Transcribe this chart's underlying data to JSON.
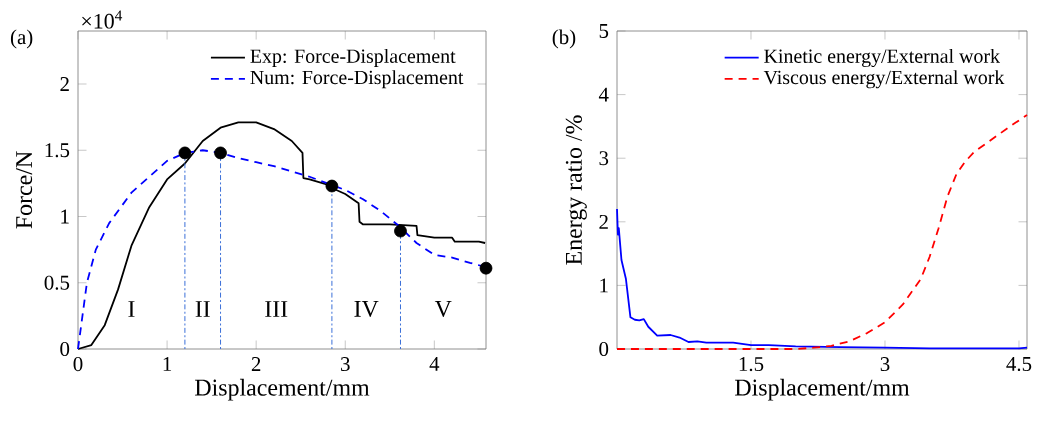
{
  "chart_data": [
    {
      "type": "line",
      "title": "(a)",
      "xlabel": "Displacement/mm",
      "ylabel": "Force/N",
      "xlim": [
        0,
        4.58
      ],
      "ylim": [
        0,
        2.4
      ],
      "xticks": [
        0,
        1,
        2,
        3,
        4
      ],
      "yticks": [
        0,
        0.5,
        1,
        1.5,
        2
      ],
      "legend": "top right",
      "annotations": [
        "×10$^{4}$",
        "I",
        "II",
        "III",
        "IV",
        "V"
      ],
      "series": [
        {
          "name": "Exp: Force-Displacement",
          "color": "#000000",
          "line_style": "solid",
          "x": [
            0,
            0.15,
            0.3,
            0.45,
            0.6,
            0.8,
            1.0,
            1.2,
            1.4,
            1.6,
            1.8,
            2.0,
            2.2,
            2.4,
            2.52,
            2.53,
            2.6,
            2.8,
            2.9,
            3.0,
            3.15,
            3.16,
            3.2,
            3.5,
            3.8,
            3.81,
            4.0,
            4.2,
            4.23,
            4.5,
            4.57
          ],
          "values": [
            0,
            0.03,
            0.18,
            0.45,
            0.78,
            1.07,
            1.28,
            1.4,
            1.57,
            1.67,
            1.71,
            1.71,
            1.66,
            1.57,
            1.48,
            1.29,
            1.28,
            1.24,
            1.2,
            1.17,
            1.1,
            0.96,
            0.94,
            0.94,
            0.93,
            0.86,
            0.84,
            0.84,
            0.81,
            0.81,
            0.8
          ]
        },
        {
          "name": "Num: Force-Displacement",
          "color": "#0000ff",
          "line_style": "dashed",
          "x": [
            0,
            0.05,
            0.1,
            0.2,
            0.35,
            0.6,
            0.8,
            1.0,
            1.2,
            1.4,
            1.6,
            1.8,
            2.0,
            2.2,
            2.4,
            2.6,
            2.8,
            3.0,
            3.2,
            3.4,
            3.6,
            3.8,
            4.0,
            4.2,
            4.4,
            4.57
          ],
          "values": [
            0,
            0.25,
            0.5,
            0.75,
            0.95,
            1.18,
            1.3,
            1.42,
            1.48,
            1.5,
            1.48,
            1.44,
            1.41,
            1.38,
            1.34,
            1.3,
            1.25,
            1.2,
            1.13,
            1.04,
            0.93,
            0.8,
            0.71,
            0.69,
            0.65,
            0.62
          ]
        },
        {
          "color": "#3a6fd8",
          "line_style": "dotted",
          "x": [
            1.2,
            1.2
          ],
          "values": [
            0,
            1.48
          ]
        },
        {
          "color": "#3a6fd8",
          "line_style": "dotted",
          "x": [
            1.6,
            1.6
          ],
          "values": [
            0,
            1.48
          ]
        },
        {
          "color": "#3a6fd8",
          "line_style": "dotted",
          "x": [
            2.85,
            2.85
          ],
          "values": [
            0,
            1.23
          ]
        },
        {
          "color": "#3a6fd8",
          "line_style": "dotted",
          "x": [
            3.62,
            3.62
          ],
          "values": [
            0,
            0.89
          ]
        },
        {
          "color": "#000000",
          "type": "scatter",
          "marker": "circle",
          "x": [
            1.2,
            1.6,
            2.85,
            3.62,
            4.58
          ],
          "values": [
            1.48,
            1.48,
            1.23,
            0.89,
            0.61
          ]
        }
      ]
    },
    {
      "type": "line",
      "title": "(b)",
      "xlabel": "Displacement/mm",
      "ylabel": "Energy ratio /%",
      "xlim": [
        0,
        4.59
      ],
      "ylim": [
        0,
        5
      ],
      "xticks": [
        1.5,
        3,
        4.5
      ],
      "yticks": [
        0,
        1,
        2,
        3,
        4,
        5
      ],
      "legend": "top right",
      "series": [
        {
          "name": "Kinetic energy/External work",
          "color": "#0000ff",
          "line_style": "solid",
          "x": [
            0,
            0.01,
            0.02,
            0.05,
            0.1,
            0.15,
            0.2,
            0.25,
            0.3,
            0.35,
            0.45,
            0.6,
            0.7,
            0.8,
            0.9,
            1.0,
            1.2,
            1.3,
            1.5,
            1.7,
            2.0,
            2.5,
            3,
            3.5,
            4.0,
            4.5,
            4.59
          ],
          "values": [
            2.2,
            1.8,
            1.9,
            1.4,
            1.1,
            0.5,
            0.46,
            0.45,
            0.47,
            0.35,
            0.21,
            0.22,
            0.18,
            0.11,
            0.12,
            0.1,
            0.1,
            0.1,
            0.06,
            0.06,
            0.04,
            0.03,
            0.02,
            0.01,
            0.01,
            0.01,
            0.02
          ]
        },
        {
          "name": "Viscous energy/External work",
          "color": "#ff0000",
          "line_style": "dashed",
          "x": [
            0,
            2.0,
            2.2,
            2.4,
            2.6,
            2.8,
            3.0,
            3.2,
            3.4,
            3.5,
            3.6,
            3.7,
            3.8,
            3.9,
            4.0,
            4.2,
            4.4,
            4.59
          ],
          "values": [
            0,
            0,
            0.02,
            0.05,
            0.12,
            0.25,
            0.42,
            0.7,
            1.1,
            1.45,
            1.9,
            2.4,
            2.75,
            2.95,
            3.1,
            3.3,
            3.5,
            3.68
          ]
        }
      ]
    }
  ]
}
